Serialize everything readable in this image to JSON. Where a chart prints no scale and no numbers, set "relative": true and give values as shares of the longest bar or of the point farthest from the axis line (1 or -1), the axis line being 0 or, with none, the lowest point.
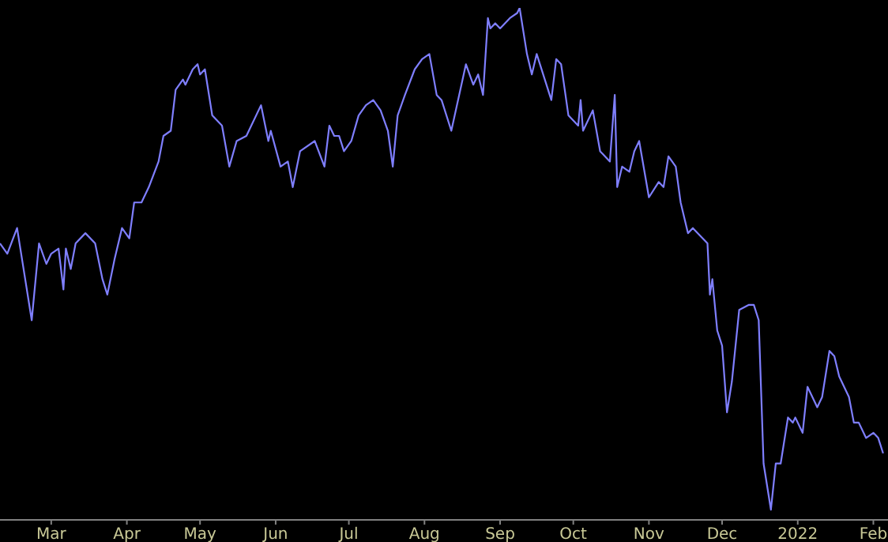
{
  "chart_data": {
    "type": "line",
    "relative": true,
    "color": "#7f7fff",
    "marker": "none",
    "line_style": "solid",
    "xlim": [
      "2021-02-08",
      "2022-02-07"
    ],
    "xticks": [
      {
        "value": "2021-03-01",
        "label": "Mar"
      },
      {
        "value": "2021-04-01",
        "label": "Apr"
      },
      {
        "value": "2021-05-01",
        "label": "May"
      },
      {
        "value": "2021-06-01",
        "label": "Jun"
      },
      {
        "value": "2021-07-01",
        "label": "Jul"
      },
      {
        "value": "2021-08-01",
        "label": "Aug"
      },
      {
        "value": "2021-09-01",
        "label": "Sep"
      },
      {
        "value": "2021-10-01",
        "label": "Oct"
      },
      {
        "value": "2021-11-01",
        "label": "Nov"
      },
      {
        "value": "2021-12-01",
        "label": "Dec"
      },
      {
        "value": "2022-01-01",
        "label": "2022"
      },
      {
        "value": "2022-02-01",
        "label": "Feb"
      }
    ],
    "x": [
      "2021-02-08",
      "2021-02-11",
      "2021-02-15",
      "2021-02-21",
      "2021-02-24",
      "2021-02-27",
      "2021-03-01",
      "2021-03-04",
      "2021-03-06",
      "2021-03-07",
      "2021-03-09",
      "2021-03-11",
      "2021-03-15",
      "2021-03-19",
      "2021-03-22",
      "2021-03-24",
      "2021-03-27",
      "2021-03-30",
      "2021-04-02",
      "2021-04-04",
      "2021-04-07",
      "2021-04-10",
      "2021-04-14",
      "2021-04-16",
      "2021-04-19",
      "2021-04-21",
      "2021-04-24",
      "2021-04-25",
      "2021-04-28",
      "2021-04-30",
      "2021-05-01",
      "2021-05-03",
      "2021-05-06",
      "2021-05-10",
      "2021-05-13",
      "2021-05-16",
      "2021-05-20",
      "2021-05-26",
      "2021-05-29",
      "2021-05-30",
      "2021-06-03",
      "2021-06-06",
      "2021-06-08",
      "2021-06-11",
      "2021-06-17",
      "2021-06-21",
      "2021-06-23",
      "2021-06-25",
      "2021-06-27",
      "2021-06-29",
      "2021-07-02",
      "2021-07-05",
      "2021-07-08",
      "2021-07-11",
      "2021-07-14",
      "2021-07-17",
      "2021-07-19",
      "2021-07-21",
      "2021-07-24",
      "2021-07-28",
      "2021-07-31",
      "2021-08-03",
      "2021-08-06",
      "2021-08-08",
      "2021-08-12",
      "2021-08-18",
      "2021-08-21",
      "2021-08-23",
      "2021-08-25",
      "2021-08-27",
      "2021-08-28",
      "2021-08-30",
      "2021-09-01",
      "2021-09-05",
      "2021-09-08",
      "2021-09-09",
      "2021-09-12",
      "2021-09-14",
      "2021-09-16",
      "2021-09-22",
      "2021-09-24",
      "2021-09-26",
      "2021-09-29",
      "2021-10-03",
      "2021-10-04",
      "2021-10-05",
      "2021-10-09",
      "2021-10-12",
      "2021-10-16",
      "2021-10-18",
      "2021-10-19",
      "2021-10-21",
      "2021-10-24",
      "2021-10-26",
      "2021-10-28",
      "2021-11-01",
      "2021-11-05",
      "2021-11-07",
      "2021-11-09",
      "2021-11-12",
      "2021-11-14",
      "2021-11-17",
      "2021-11-19",
      "2021-11-25",
      "2021-11-26",
      "2021-11-27",
      "2021-11-29",
      "2021-12-01",
      "2021-12-03",
      "2021-12-05",
      "2021-12-08",
      "2021-12-12",
      "2021-12-14",
      "2021-12-16",
      "2021-12-18",
      "2021-12-21",
      "2021-12-23",
      "2021-12-25",
      "2021-12-28",
      "2021-12-30",
      "2021-12-31",
      "2022-01-03",
      "2022-01-05",
      "2022-01-09",
      "2022-01-11",
      "2022-01-14",
      "2022-01-16",
      "2022-01-18",
      "2022-01-22",
      "2022-01-24",
      "2022-01-26",
      "2022-01-29",
      "2022-02-01",
      "2022-02-03",
      "2022-02-05"
    ],
    "values": [
      0.54,
      0.52,
      0.57,
      0.39,
      0.54,
      0.5,
      0.52,
      0.53,
      0.45,
      0.53,
      0.49,
      0.54,
      0.56,
      0.54,
      0.47,
      0.44,
      0.51,
      0.57,
      0.55,
      0.62,
      0.62,
      0.65,
      0.7,
      0.75,
      0.76,
      0.84,
      0.86,
      0.85,
      0.88,
      0.89,
      0.87,
      0.88,
      0.79,
      0.77,
      0.69,
      0.74,
      0.75,
      0.81,
      0.74,
      0.76,
      0.69,
      0.7,
      0.65,
      0.72,
      0.74,
      0.69,
      0.77,
      0.75,
      0.75,
      0.72,
      0.74,
      0.79,
      0.81,
      0.82,
      0.8,
      0.76,
      0.69,
      0.79,
      0.83,
      0.88,
      0.9,
      0.91,
      0.83,
      0.82,
      0.76,
      0.89,
      0.85,
      0.87,
      0.83,
      0.98,
      0.96,
      0.97,
      0.96,
      0.98,
      0.99,
      1.0,
      0.91,
      0.87,
      0.91,
      0.82,
      0.9,
      0.89,
      0.79,
      0.77,
      0.82,
      0.76,
      0.8,
      0.72,
      0.7,
      0.83,
      0.65,
      0.69,
      0.68,
      0.72,
      0.74,
      0.63,
      0.66,
      0.65,
      0.71,
      0.69,
      0.62,
      0.56,
      0.57,
      0.54,
      0.44,
      0.47,
      0.37,
      0.34,
      0.21,
      0.27,
      0.41,
      0.42,
      0.42,
      0.39,
      0.11,
      0.02,
      0.11,
      0.11,
      0.2,
      0.19,
      0.2,
      0.17,
      0.26,
      0.22,
      0.24,
      0.33,
      0.32,
      0.28,
      0.24,
      0.19,
      0.19,
      0.16,
      0.17,
      0.16,
      0.13
    ]
  }
}
